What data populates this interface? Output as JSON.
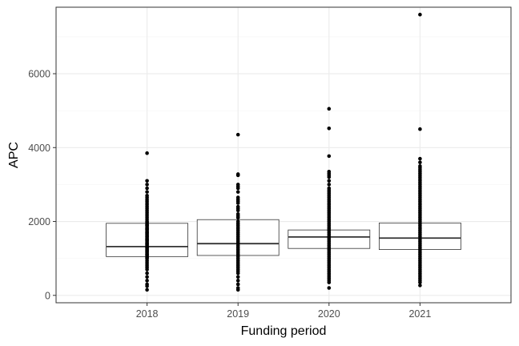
{
  "chart_data": {
    "type": "box",
    "title": "",
    "xlabel": "Funding period",
    "ylabel": "APC",
    "categories": [
      "2018",
      "2019",
      "2020",
      "2021"
    ],
    "ylim": [
      -200,
      7800
    ],
    "yticks": [
      0,
      2000,
      4000,
      6000
    ],
    "ytick_labels": [
      "0",
      "2000",
      "4000",
      "6000"
    ],
    "grid": true,
    "theme": "bw",
    "colors": {
      "panel_border": "#333333",
      "grid_major": "#ebebeb",
      "grid_minor": "#f5f5f5",
      "box": "#333333",
      "point": "#000000"
    },
    "boxes": [
      {
        "category": "2018",
        "q1": 1050,
        "median": 1320,
        "q3": 1950
      },
      {
        "category": "2019",
        "q1": 1080,
        "median": 1400,
        "q3": 2050
      },
      {
        "category": "2020",
        "q1": 1270,
        "median": 1580,
        "q3": 1770
      },
      {
        "category": "2021",
        "q1": 1240,
        "median": 1550,
        "q3": 1960
      }
    ],
    "points": [
      {
        "category": "2018",
        "values": [
          3850,
          3100,
          3000,
          2900,
          2800,
          2700,
          2650,
          2600,
          2550,
          2500,
          2450,
          2400,
          2350,
          2300,
          2250,
          2200,
          2150,
          2100,
          2050,
          2000,
          1980,
          1950,
          1920,
          1900,
          1880,
          1850,
          1820,
          1800,
          1780,
          1750,
          1720,
          1700,
          1680,
          1650,
          1620,
          1600,
          1580,
          1550,
          1520,
          1500,
          1480,
          1450,
          1420,
          1400,
          1380,
          1350,
          1320,
          1300,
          1280,
          1250,
          1220,
          1200,
          1180,
          1150,
          1120,
          1100,
          1080,
          1050,
          1020,
          1000,
          950,
          900,
          850,
          800,
          750,
          700,
          600,
          500,
          400,
          300,
          250,
          150
        ]
      },
      {
        "category": "2019",
        "values": [
          4350,
          3280,
          3250,
          3000,
          2950,
          2900,
          2800,
          2650,
          2600,
          2550,
          2500,
          2400,
          2350,
          2300,
          2200,
          2150,
          2100,
          2000,
          1950,
          1900,
          1850,
          1800,
          1750,
          1700,
          1650,
          1600,
          1550,
          1500,
          1450,
          1400,
          1350,
          1300,
          1250,
          1200,
          1150,
          1100,
          1050,
          1000,
          950,
          900,
          850,
          800,
          750,
          700,
          650,
          600,
          500,
          400,
          300,
          200,
          150
        ]
      },
      {
        "category": "2020",
        "values": [
          5050,
          4520,
          3770,
          3350,
          3300,
          3250,
          3200,
          3100,
          3000,
          2900,
          2850,
          2800,
          2750,
          2700,
          2650,
          2600,
          2550,
          2500,
          2450,
          2400,
          2350,
          2300,
          2250,
          2200,
          2150,
          2100,
          2050,
          2000,
          1950,
          1900,
          1850,
          1800,
          1750,
          1700,
          1650,
          1600,
          1550,
          1500,
          1450,
          1400,
          1350,
          1300,
          1250,
          1200,
          1150,
          1100,
          1050,
          1000,
          950,
          900,
          850,
          800,
          750,
          700,
          650,
          600,
          550,
          500,
          450,
          400,
          350,
          200
        ]
      },
      {
        "category": "2021",
        "values": [
          7600,
          4500,
          3700,
          3600,
          3500,
          3450,
          3400,
          3350,
          3300,
          3250,
          3200,
          3150,
          3100,
          3050,
          3000,
          2950,
          2900,
          2850,
          2800,
          2750,
          2700,
          2650,
          2600,
          2550,
          2500,
          2450,
          2400,
          2350,
          2300,
          2250,
          2200,
          2150,
          2100,
          2050,
          2000,
          1950,
          1900,
          1850,
          1800,
          1750,
          1700,
          1650,
          1600,
          1550,
          1500,
          1450,
          1400,
          1350,
          1300,
          1250,
          1200,
          1150,
          1100,
          1050,
          1000,
          950,
          900,
          850,
          800,
          750,
          700,
          650,
          600,
          550,
          500,
          450,
          400,
          350,
          270
        ]
      }
    ]
  }
}
